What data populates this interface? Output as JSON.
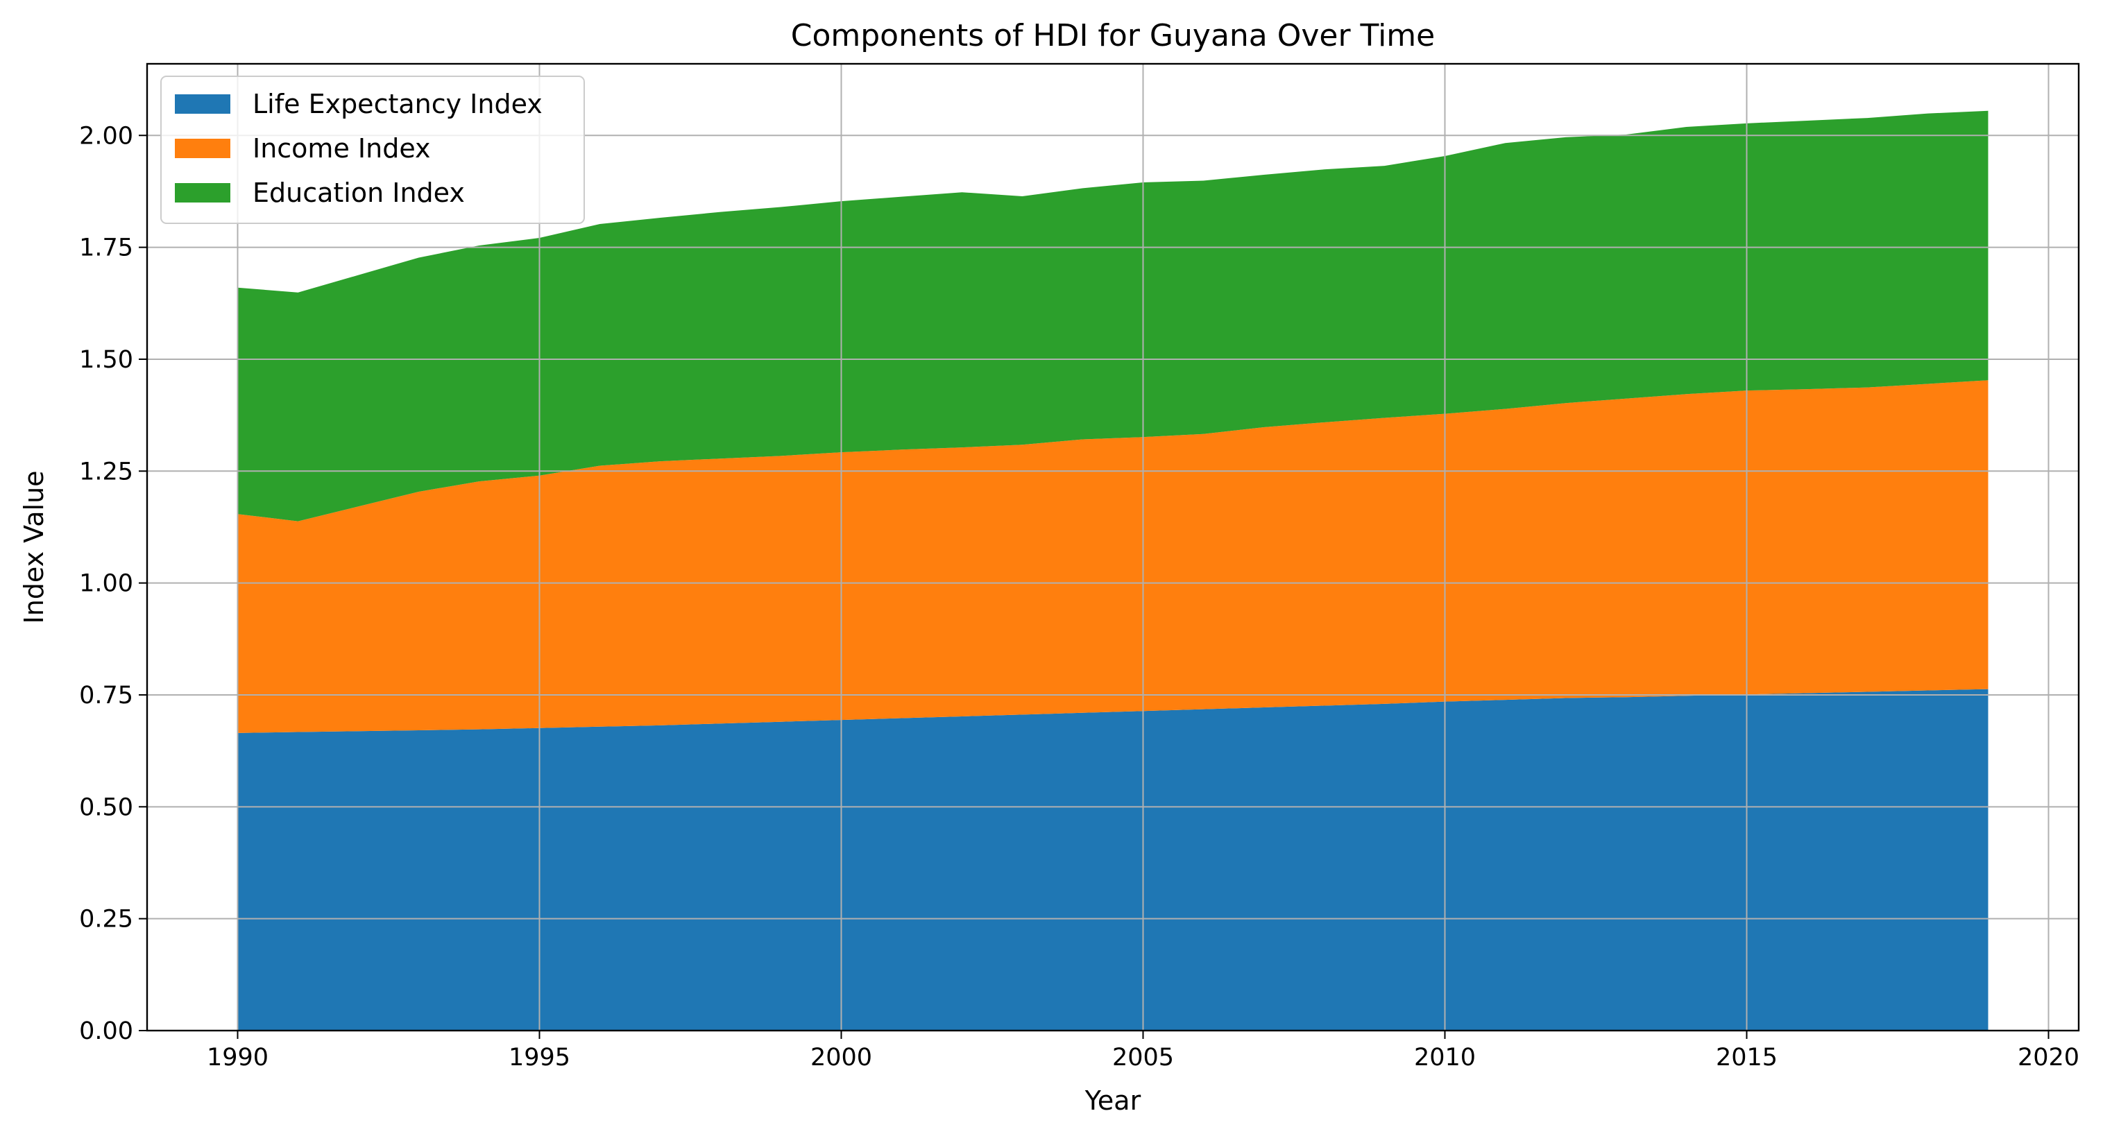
{
  "chart_data": {
    "type": "area",
    "stacked": true,
    "title": "Components of HDI for Guyana Over Time",
    "xlabel": "Year",
    "ylabel": "Index Value",
    "xlim": [
      1988.5,
      2020.5
    ],
    "ylim": [
      0,
      2.16
    ],
    "xticks": [
      1990,
      1995,
      2000,
      2005,
      2010,
      2015,
      2020
    ],
    "xtick_labels": [
      "1990",
      "1995",
      "2000",
      "2005",
      "2010",
      "2015",
      "2020"
    ],
    "yticks": [
      0,
      0.25,
      0.5,
      0.75,
      1.0,
      1.25,
      1.5,
      1.75,
      2.0
    ],
    "ytick_labels": [
      "0.00",
      "0.25",
      "0.50",
      "0.75",
      "1.00",
      "1.25",
      "1.50",
      "1.75",
      "2.00"
    ],
    "grid": true,
    "legend_position": "top-left",
    "x": [
      1990,
      1991,
      1992,
      1993,
      1994,
      1995,
      1996,
      1997,
      1998,
      1999,
      2000,
      2001,
      2002,
      2003,
      2004,
      2005,
      2006,
      2007,
      2008,
      2009,
      2010,
      2011,
      2012,
      2013,
      2014,
      2015,
      2016,
      2017,
      2018,
      2019
    ],
    "series": [
      {
        "name": "Life Expectancy Index",
        "color": "#1f77b4",
        "values": [
          0.665,
          0.667,
          0.669,
          0.671,
          0.673,
          0.676,
          0.679,
          0.682,
          0.686,
          0.69,
          0.694,
          0.698,
          0.702,
          0.706,
          0.71,
          0.714,
          0.718,
          0.722,
          0.726,
          0.73,
          0.735,
          0.739,
          0.743,
          0.745,
          0.748,
          0.751,
          0.754,
          0.757,
          0.76,
          0.763
        ]
      },
      {
        "name": "Income Index",
        "color": "#ff7f0e",
        "values": [
          0.489,
          0.471,
          0.502,
          0.533,
          0.554,
          0.564,
          0.583,
          0.59,
          0.592,
          0.594,
          0.598,
          0.6,
          0.601,
          0.603,
          0.611,
          0.612,
          0.615,
          0.626,
          0.633,
          0.639,
          0.643,
          0.65,
          0.659,
          0.667,
          0.674,
          0.679,
          0.679,
          0.68,
          0.685,
          0.69
        ]
      },
      {
        "name": "Education Index",
        "color": "#2ca02c",
        "values": [
          0.506,
          0.511,
          0.517,
          0.523,
          0.527,
          0.531,
          0.54,
          0.544,
          0.551,
          0.556,
          0.561,
          0.565,
          0.57,
          0.555,
          0.561,
          0.569,
          0.566,
          0.564,
          0.565,
          0.563,
          0.576,
          0.594,
          0.594,
          0.59,
          0.597,
          0.597,
          0.6,
          0.602,
          0.604,
          0.602
        ]
      }
    ]
  }
}
